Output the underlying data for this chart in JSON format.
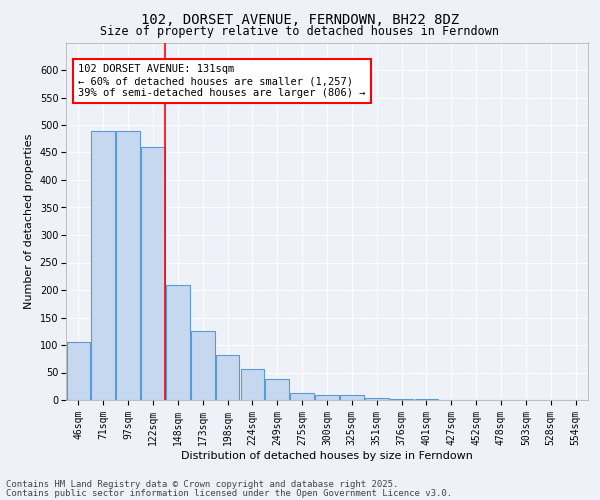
{
  "title": "102, DORSET AVENUE, FERNDOWN, BH22 8DZ",
  "subtitle": "Size of property relative to detached houses in Ferndown",
  "xlabel": "Distribution of detached houses by size in Ferndown",
  "ylabel": "Number of detached properties",
  "categories": [
    "46sqm",
    "71sqm",
    "97sqm",
    "122sqm",
    "148sqm",
    "173sqm",
    "198sqm",
    "224sqm",
    "249sqm",
    "275sqm",
    "300sqm",
    "325sqm",
    "351sqm",
    "376sqm",
    "401sqm",
    "427sqm",
    "452sqm",
    "478sqm",
    "503sqm",
    "528sqm",
    "554sqm"
  ],
  "values": [
    105,
    490,
    490,
    460,
    210,
    125,
    82,
    57,
    38,
    13,
    10,
    10,
    4,
    2,
    1,
    0,
    0,
    0,
    0,
    0,
    0
  ],
  "bar_color": "#c5d8ef",
  "bar_edge_color": "#5b9bd5",
  "bar_edge_width": 0.8,
  "red_line_x": 3.5,
  "annotation_text": "102 DORSET AVENUE: 131sqm\n← 60% of detached houses are smaller (1,257)\n39% of semi-detached houses are larger (806) →",
  "annotation_box_color": "white",
  "annotation_box_edge_color": "red",
  "ylim": [
    0,
    650
  ],
  "yticks": [
    0,
    50,
    100,
    150,
    200,
    250,
    300,
    350,
    400,
    450,
    500,
    550,
    600
  ],
  "background_color": "#eef2f8",
  "grid_color": "#ffffff",
  "footer_line1": "Contains HM Land Registry data © Crown copyright and database right 2025.",
  "footer_line2": "Contains public sector information licensed under the Open Government Licence v3.0.",
  "title_fontsize": 10,
  "subtitle_fontsize": 8.5,
  "axis_label_fontsize": 8,
  "tick_fontsize": 7,
  "annotation_fontsize": 7.5,
  "footer_fontsize": 6.5
}
